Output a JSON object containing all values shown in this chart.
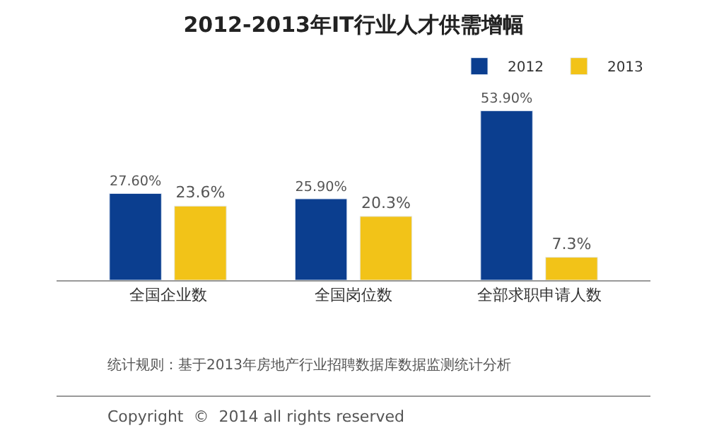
{
  "chart_data": {
    "type": "bar",
    "title": "2012-2013年IT行业人才供需增幅",
    "categories": [
      "全国企业数",
      "全国岗位数",
      "全部求职申请人数"
    ],
    "series": [
      {
        "name": "2012",
        "color": "#0b3e8f",
        "values": [
          27.6,
          25.9,
          53.9
        ],
        "value_labels": [
          "27.60%",
          "25.90%",
          "53.90%"
        ]
      },
      {
        "name": "2013",
        "color": "#f2c318",
        "values": [
          23.6,
          20.3,
          7.3
        ],
        "value_labels": [
          "23.6%",
          "20.3%",
          "7.3%"
        ]
      }
    ],
    "annotations": [
      "统计规则：基于2013年房地产行业招聘数据库数据监测统计分析",
      "Copyright  ©  2014 all rights reserved"
    ],
    "legend": "top right"
  }
}
